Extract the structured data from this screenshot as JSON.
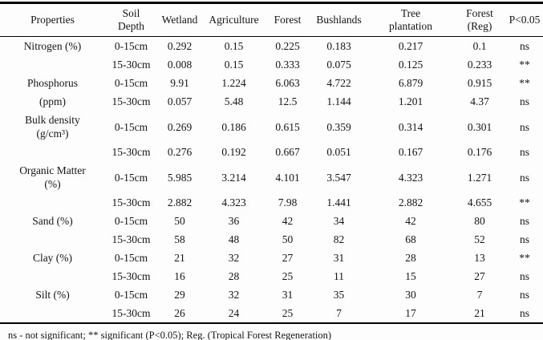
{
  "table": {
    "columns": [
      [
        "Properties"
      ],
      [
        "Soil",
        "Depth"
      ],
      [
        "Wetland"
      ],
      [
        "Agriculture"
      ],
      [
        "Forest"
      ],
      [
        "Bushlands"
      ],
      [
        "Tree",
        "plantation"
      ],
      [
        "Forest",
        "(Reg)"
      ],
      [
        "P<0.05"
      ]
    ],
    "rows": [
      {
        "property": [
          "Nitrogen (%)"
        ],
        "depth": "0-15cm",
        "values": [
          "0.292",
          "0.15",
          "0.225",
          "0.183",
          "0.217",
          "0.1"
        ],
        "sig": "ns"
      },
      {
        "property": [],
        "depth": "15-30cm",
        "values": [
          "0.008",
          "0.15",
          "0.333",
          "0.075",
          "0.125",
          "0.233"
        ],
        "sig": "**"
      },
      {
        "property": [
          "Phosphorus"
        ],
        "depth": "0-15cm",
        "values": [
          "9.91",
          "1.224",
          "6.063",
          "4.722",
          "6.879",
          "0.915"
        ],
        "sig": "**"
      },
      {
        "property": [
          "(ppm)"
        ],
        "depth": "15-30cm",
        "values": [
          "0.057",
          "5.48",
          "12.5",
          "1.144",
          "1.201",
          "4.37"
        ],
        "sig": "ns"
      },
      {
        "property": [
          "Bulk density",
          "(g/cm³)"
        ],
        "depth": "0-15cm",
        "values": [
          "0.269",
          "0.186",
          "0.615",
          "0.359",
          "0.314",
          "0.301"
        ],
        "sig": "ns"
      },
      {
        "property": [],
        "depth": "15-30cm",
        "values": [
          "0.276",
          "0.192",
          "0.667",
          "0.051",
          "0.167",
          "0.176"
        ],
        "sig": "ns"
      },
      {
        "property": [
          "Organic Matter",
          "(%)"
        ],
        "depth": "0-15cm",
        "values": [
          "5.985",
          "3.214",
          "4.101",
          "3.547",
          "4.323",
          "1.271"
        ],
        "sig": "ns"
      },
      {
        "property": [],
        "depth": "15-30cm",
        "values": [
          "2.882",
          "4.323",
          "7.98",
          "1.441",
          "2.882",
          "4.655"
        ],
        "sig": "**"
      },
      {
        "property": [
          "Sand (%)"
        ],
        "depth": "0-15cm",
        "values": [
          "50",
          "36",
          "42",
          "34",
          "42",
          "80"
        ],
        "sig": "ns"
      },
      {
        "property": [],
        "depth": "15-30cm",
        "values": [
          "58",
          "48",
          "50",
          "82",
          "68",
          "52"
        ],
        "sig": "ns"
      },
      {
        "property": [
          "Clay (%)"
        ],
        "depth": "0-15cm",
        "values": [
          "21",
          "32",
          "27",
          "31",
          "28",
          "13"
        ],
        "sig": "**"
      },
      {
        "property": [],
        "depth": "15-30cm",
        "values": [
          "16",
          "28",
          "25",
          "11",
          "15",
          "27"
        ],
        "sig": "ns"
      },
      {
        "property": [
          "Silt (%)"
        ],
        "depth": "0-15cm",
        "values": [
          "29",
          "32",
          "31",
          "35",
          "30",
          "7"
        ],
        "sig": "ns"
      },
      {
        "property": [],
        "depth": "15-30cm",
        "values": [
          "26",
          "24",
          "25",
          "7",
          "17",
          "21"
        ],
        "sig": "ns"
      }
    ],
    "footnote": "ns - not significant; ** significant (P<0.05); Reg. (Tropical Forest Regeneration)"
  }
}
